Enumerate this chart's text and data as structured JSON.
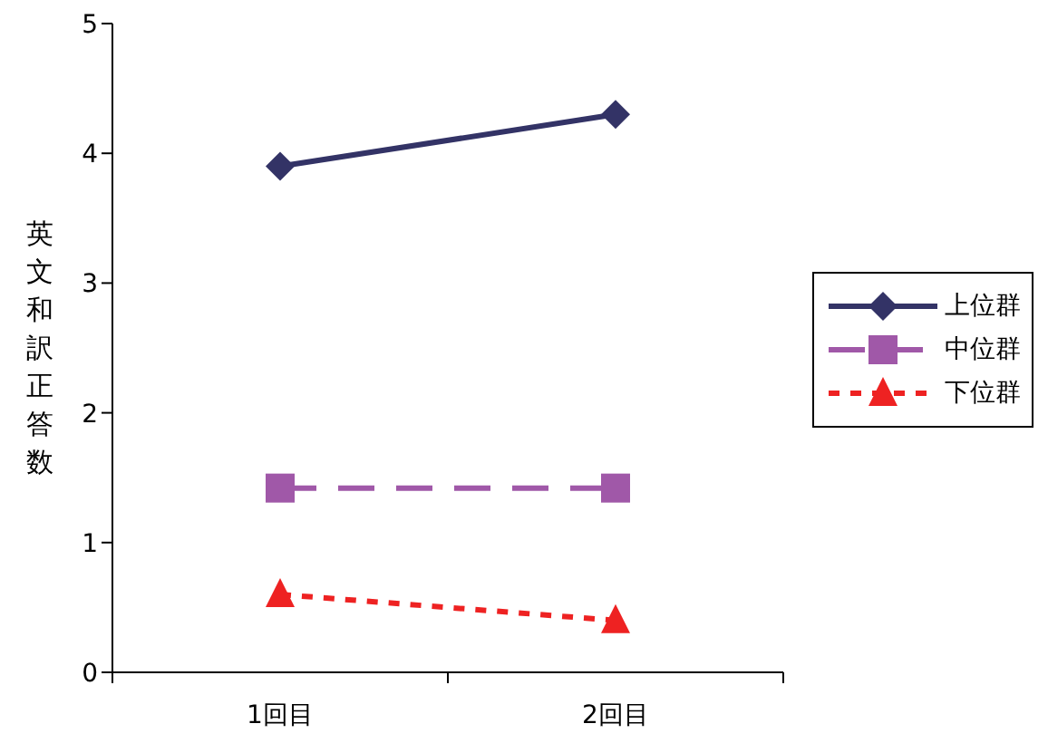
{
  "chart_data": {
    "type": "line",
    "ylabel": "英文和訳正答数",
    "categories": [
      "1回目",
      "2回目"
    ],
    "series": [
      {
        "name": "上位群",
        "color": "#333366",
        "values": [
          3.9,
          4.3
        ],
        "marker": "diamond",
        "line_style": "solid"
      },
      {
        "name": "中位群",
        "color": "#a058a8",
        "values": [
          1.42,
          1.42
        ],
        "marker": "square",
        "line_style": "dashed"
      },
      {
        "name": "下位群",
        "color": "#ee2222",
        "values": [
          0.6,
          0.4
        ],
        "marker": "triangle",
        "line_style": "dotted"
      }
    ],
    "ylim": [
      0,
      5
    ],
    "yticks": [
      0,
      1,
      2,
      3,
      4,
      5
    ],
    "grid": false,
    "legend": "right"
  }
}
